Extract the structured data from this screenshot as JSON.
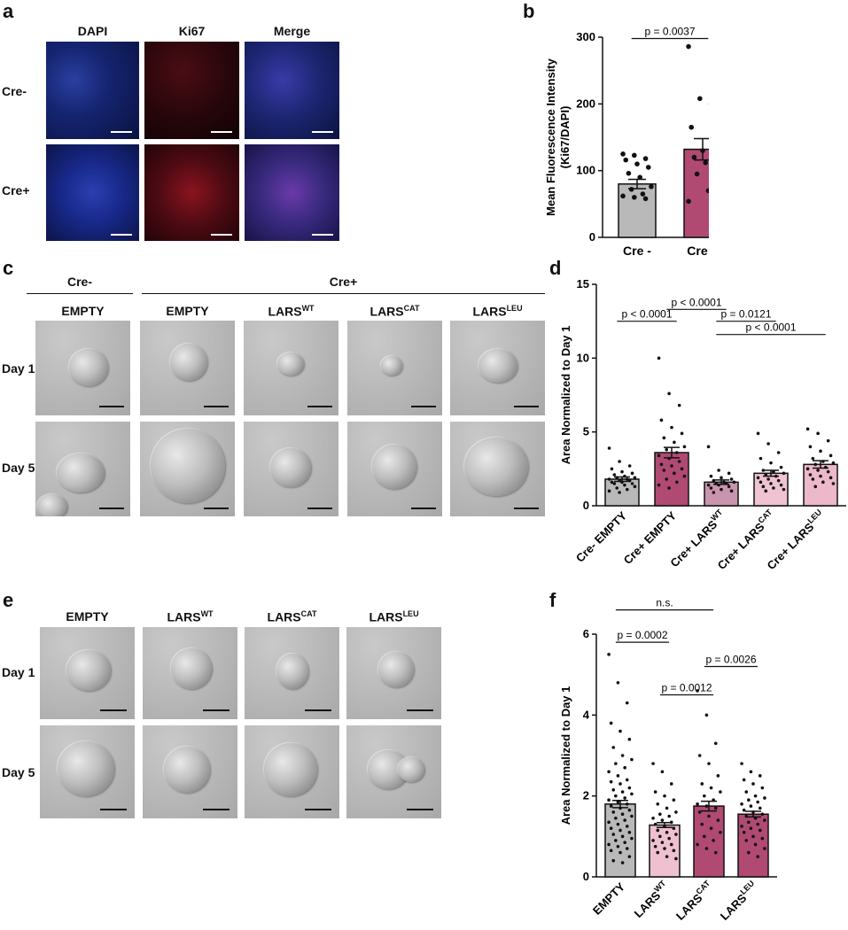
{
  "panel_labels": {
    "a": "a",
    "b": "b",
    "c": "c",
    "d": "d",
    "e": "e",
    "f": "f"
  },
  "panel_a": {
    "columns": [
      "DAPI",
      "Ki67",
      "Merge"
    ],
    "rows": [
      "Cre-",
      "Cre+"
    ]
  },
  "panel_c": {
    "group_cre_minus": "Cre-",
    "group_cre_plus": "Cre+",
    "columns": [
      {
        "base": "EMPTY",
        "sup": ""
      },
      {
        "base": "EMPTY",
        "sup": ""
      },
      {
        "base": "LARS",
        "sup": "WT"
      },
      {
        "base": "LARS",
        "sup": "CAT"
      },
      {
        "base": "LARS",
        "sup": "LEU"
      }
    ],
    "rows": [
      "Day 1",
      "Day 5"
    ]
  },
  "panel_e": {
    "columns": [
      {
        "base": "EMPTY",
        "sup": ""
      },
      {
        "base": "LARS",
        "sup": "WT"
      },
      {
        "base": "LARS",
        "sup": "CAT"
      },
      {
        "base": "LARS",
        "sup": "LEU"
      }
    ],
    "rows": [
      "Day 1",
      "Day 5"
    ]
  },
  "chart_data": [
    {
      "panel": "b",
      "type": "bar",
      "ylabel_line1": "Mean Fluorescence Intensity",
      "ylabel_line2": "(Ki67/DAPI)",
      "ylim": [
        0,
        300
      ],
      "yticks": [
        "0",
        "100",
        "200",
        "300"
      ],
      "categories": [
        "Cre -",
        "Cre +"
      ],
      "values": [
        80,
        132
      ],
      "errors": [
        7,
        16
      ],
      "colors": [
        "#b9b9b9",
        "#b04a73"
      ],
      "points": [
        [
          125,
          123,
          118,
          116,
          110,
          105,
          96,
          90,
          76,
          72,
          65,
          62,
          60,
          58
        ],
        [
          286,
          208,
          200,
          165,
          130,
          128,
          120,
          112,
          103,
          95,
          70,
          54
        ]
      ],
      "comparisons": [
        {
          "from": 0,
          "to": 1,
          "label": "p = 0.0037",
          "y": 298
        }
      ]
    },
    {
      "panel": "d",
      "type": "bar",
      "ylabel": "Area Normalized to Day 1",
      "ylim": [
        0,
        15
      ],
      "yticks": [
        "0",
        "5",
        "10",
        "15"
      ],
      "categories": [
        {
          "base": "Cre- EMPTY",
          "sup": ""
        },
        {
          "base": "Cre+ EMPTY",
          "sup": ""
        },
        {
          "base": "Cre+ LARS",
          "sup": "WT"
        },
        {
          "base": "Cre+ LARS",
          "sup": "CAT"
        },
        {
          "base": "Cre+ LARS",
          "sup": "LEU"
        }
      ],
      "values": [
        1.8,
        3.6,
        1.6,
        2.2,
        2.8
      ],
      "errors": [
        0.15,
        0.35,
        0.15,
        0.2,
        0.25
      ],
      "colors": [
        "#b9b9b9",
        "#b04a73",
        "#c994ad",
        "#f0c3d3",
        "#ecb8ca"
      ],
      "points": [
        [
          3.9,
          3.0,
          2.7,
          2.5,
          2.3,
          2.2,
          2.1,
          2.0,
          1.9,
          1.9,
          1.8,
          1.8,
          1.7,
          1.7,
          1.6,
          1.6,
          1.5,
          1.5,
          1.4,
          1.3,
          1.2,
          1.1,
          1.0,
          0.9
        ],
        [
          10.0,
          7.6,
          6.8,
          5.8,
          5.3,
          4.9,
          4.6,
          4.3,
          4.0,
          3.8,
          3.6,
          3.4,
          3.2,
          3.0,
          2.8,
          2.7,
          2.5,
          2.4,
          2.2,
          2.0,
          1.8,
          1.6,
          1.4,
          1.2
        ],
        [
          4.0,
          2.4,
          2.2,
          2.0,
          1.9,
          1.8,
          1.7,
          1.6,
          1.6,
          1.5,
          1.5,
          1.4,
          1.4,
          1.3,
          1.2,
          1.1,
          1.0,
          0.9
        ],
        [
          4.9,
          4.2,
          3.6,
          3.2,
          2.9,
          2.6,
          2.4,
          2.3,
          2.2,
          2.1,
          2.0,
          1.9,
          1.8,
          1.7,
          1.6,
          1.5,
          1.4,
          1.3,
          1.2,
          1.1,
          1.0
        ],
        [
          5.2,
          4.9,
          4.4,
          4.0,
          3.7,
          3.4,
          3.2,
          3.0,
          2.9,
          2.8,
          2.6,
          2.5,
          2.4,
          2.3,
          2.1,
          2.0,
          1.9,
          1.8,
          1.6,
          1.5,
          1.3
        ]
      ],
      "comparisons": [
        {
          "from": 0,
          "to": 1,
          "label": "p < 0.0001",
          "y": 12.5
        },
        {
          "from": 1,
          "to": 2,
          "label": "p < 0.0001",
          "y": 13.3
        },
        {
          "from": 2,
          "to": 3,
          "label": "p = 0.0121",
          "y": 12.5
        },
        {
          "from": 2,
          "to": 4,
          "label": "p < 0.0001",
          "y": 11.6
        }
      ]
    },
    {
      "panel": "f",
      "type": "bar",
      "ylabel": "Area Normalized to Day 1",
      "ylim": [
        0,
        6
      ],
      "yticks": [
        "0",
        "2",
        "4",
        "6"
      ],
      "categories": [
        {
          "base": "EMPTY",
          "sup": ""
        },
        {
          "base": "LARS",
          "sup": "WT"
        },
        {
          "base": "LARS",
          "sup": "CAT"
        },
        {
          "base": "LARS",
          "sup": "LEU"
        }
      ],
      "values": [
        1.8,
        1.28,
        1.75,
        1.55
      ],
      "errors": [
        0.09,
        0.06,
        0.12,
        0.07
      ],
      "colors": [
        "#b9b9b9",
        "#eec0d0",
        "#b04a73",
        "#b04a73"
      ],
      "points": [
        [
          5.5,
          4.8,
          4.3,
          3.8,
          3.6,
          3.4,
          3.2,
          3.0,
          2.9,
          2.8,
          2.7,
          2.6,
          2.5,
          2.4,
          2.35,
          2.3,
          2.2,
          2.15,
          2.1,
          2.05,
          2.0,
          1.95,
          1.9,
          1.85,
          1.8,
          1.75,
          1.7,
          1.65,
          1.6,
          1.55,
          1.5,
          1.45,
          1.4,
          1.35,
          1.3,
          1.25,
          1.2,
          1.15,
          1.1,
          1.05,
          1.0,
          0.95,
          0.9,
          0.85,
          0.8,
          0.75,
          0.7,
          0.65,
          0.6,
          0.5,
          0.4,
          0.35
        ],
        [
          2.8,
          2.6,
          2.3,
          2.1,
          2.0,
          1.9,
          1.8,
          1.7,
          1.6,
          1.55,
          1.5,
          1.45,
          1.4,
          1.35,
          1.3,
          1.25,
          1.2,
          1.15,
          1.1,
          1.05,
          1.0,
          0.95,
          0.9,
          0.85,
          0.8,
          0.75,
          0.7,
          0.65,
          0.6,
          0.5,
          0.45
        ],
        [
          4.6,
          4.0,
          3.3,
          3.0,
          2.8,
          2.5,
          2.3,
          2.2,
          2.1,
          2.0,
          1.9,
          1.8,
          1.75,
          1.7,
          1.6,
          1.5,
          1.4,
          1.3,
          1.2,
          1.1,
          1.0,
          0.9,
          0.8,
          0.7,
          0.6
        ],
        [
          2.8,
          2.6,
          2.5,
          2.4,
          2.3,
          2.2,
          2.1,
          2.0,
          1.95,
          1.9,
          1.85,
          1.8,
          1.75,
          1.7,
          1.65,
          1.6,
          1.55,
          1.5,
          1.45,
          1.4,
          1.35,
          1.3,
          1.25,
          1.2,
          1.15,
          1.1,
          1.0,
          0.95,
          0.9,
          0.8,
          0.7,
          0.6,
          0.5
        ]
      ],
      "comparisons": [
        {
          "from": 0,
          "to": 3,
          "label": "n.s.",
          "y": 7.3
        },
        {
          "from": 0,
          "to": 2,
          "label": "n.s.",
          "y": 6.6
        },
        {
          "from": 0,
          "to": 1,
          "label": "p = 0.0002",
          "y": 5.8
        },
        {
          "from": 2,
          "to": 3,
          "label": "p = 0.0026",
          "y": 5.2
        },
        {
          "from": 1,
          "to": 2,
          "label": "p = 0.0012",
          "y": 4.5
        }
      ]
    }
  ]
}
